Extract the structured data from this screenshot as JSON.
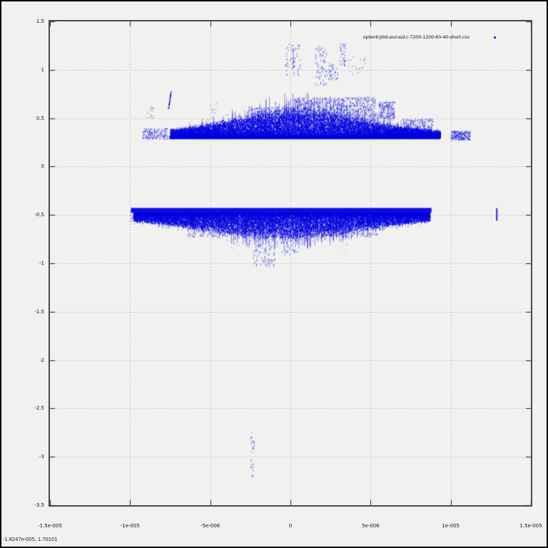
{
  "window": {
    "type": "gnuplot-plot-window",
    "background": "#f1f1ef"
  },
  "legend": {
    "label": "optentrylist-eurusd.c-7200-1200-60-40-short.csv"
  },
  "status": {
    "coordinate_readout": "-1.8247e-005, 1.70101"
  },
  "colors": {
    "point": "#0000e0",
    "point_rgb": "0,0,224",
    "grid": "#9e9e9e",
    "axis_border": "#4a4a4a",
    "tick": "#1a1a1a",
    "background": "#f1f1ef",
    "text": "#111111"
  },
  "axes": {
    "x": {
      "min": -1.5e-05,
      "max": 1.5e-05,
      "ticks": [
        {
          "v": -1.5e-05,
          "label": "-1.5e-005"
        },
        {
          "v": -1e-05,
          "label": "-1e-005"
        },
        {
          "v": -5e-06,
          "label": "-5e-006"
        },
        {
          "v": 0,
          "label": "0"
        },
        {
          "v": 5e-06,
          "label": "5e-006"
        },
        {
          "v": 1e-05,
          "label": "1e-005"
        },
        {
          "v": 1.5e-05,
          "label": "1.5e-005"
        }
      ]
    },
    "y": {
      "min": -3.5,
      "max": 1.5,
      "ticks": [
        {
          "v": 1.5,
          "label": "1.5"
        },
        {
          "v": 1,
          "label": "1"
        },
        {
          "v": 0.5,
          "label": "0.5"
        },
        {
          "v": 0,
          "label": "0"
        },
        {
          "v": -0.5,
          "label": "-0.5"
        },
        {
          "v": -1,
          "label": "-1"
        },
        {
          "v": -1.5,
          "label": "-1.5"
        },
        {
          "v": -2,
          "label": "-2"
        },
        {
          "v": -2.5,
          "label": "-2.5"
        },
        {
          "v": -3,
          "label": "-3"
        },
        {
          "v": -3.5,
          "label": "-3.5"
        }
      ]
    }
  },
  "chart_data": {
    "type": "scatter",
    "marker": "dot",
    "title": "",
    "xlabel": "",
    "ylabel": "",
    "xlim": [
      -1.5e-05,
      1.5e-05
    ],
    "ylim": [
      -3.5,
      1.5
    ],
    "grid": "dotted",
    "legend_position": "top-right-inside",
    "series": [
      {
        "name": "optentrylist-eurusd.c-7200-1200-60-40-short.csv",
        "color": "#0000e0"
      }
    ],
    "summary": "Dense blue dot scatter forming two horizontal bands: an upper band with a sharp baseline near y=0.3 and fuzzy mass rising to ~0.7 near x=0 with sparse outliers up to y~1.3 between x=0 and x=4e-6; a lower band with a sharp dense line near y=-0.45 and ragged spikes hanging to ~-1.0 near x=-2e-6; isolated clumps at x~1.05e-5 (y~0.3), a short dash at x~1.28e-5 (y~-0.5), and sparse outliers near x=-2.4e-6 from y=-2.7 down to y=-3.2.",
    "clusters": [
      {
        "name": "upper-baseline",
        "kind": "hline",
        "x0": -7.55e-06,
        "x1": 9.35e-06,
        "y0": 0.282,
        "y1": 0.316,
        "alpha": 0.95,
        "seed": 11
      },
      {
        "name": "upper-mass",
        "kind": "envelope",
        "x0": -7.5e-06,
        "x1": 9.35e-06,
        "base": 0.31,
        "dir": 1,
        "edge_h": 0.04,
        "peak_h": 0.26,
        "peak_x": 4e-07,
        "sigma": 4e-06,
        "n": 16000,
        "alpha": 0.8,
        "ph": 2,
        "seed": 12
      },
      {
        "name": "upper-halo",
        "kind": "envelope",
        "x0": -7.5e-06,
        "x1": 9.35e-06,
        "base": 0.31,
        "dir": 1,
        "edge_h": 0.05,
        "peak_h": 0.34,
        "peak_x": 4e-07,
        "sigma": 4e-06,
        "n": 2500,
        "alpha": 0.3,
        "ph": 2,
        "seed": 13
      },
      {
        "name": "upper-spikes",
        "kind": "spikes",
        "x0": -6.3e-06,
        "x1": 8.8e-06,
        "base": 0.31,
        "dir": 1,
        "edge_h": 0.05,
        "peak_h": 0.3,
        "peak_x": 5e-07,
        "sigma": 3.8e-06,
        "n": 160,
        "fmin": 0.7,
        "fmax": 1.55,
        "alpha": 0.45,
        "seed": 14
      },
      {
        "name": "upper-mid-clumps-right",
        "kind": "scatter",
        "x0": 3e-07,
        "x1": 5.3e-06,
        "y0": 0.48,
        "y1": 0.72,
        "n": 900,
        "alpha": 0.5,
        "ph": 2,
        "seed": 15
      },
      {
        "name": "upper-mid-clumps-left",
        "kind": "scatter",
        "x0": -2.5e-06,
        "x1": 3e-07,
        "y0": 0.45,
        "y1": 0.62,
        "n": 350,
        "alpha": 0.45,
        "ph": 2,
        "seed": 16
      },
      {
        "name": "upper-right-clump",
        "kind": "scatter",
        "x0": 5.5e-06,
        "x1": 6.5e-06,
        "y0": 0.5,
        "y1": 0.68,
        "n": 200,
        "alpha": 0.5,
        "ph": 2,
        "seed": 17
      },
      {
        "name": "upper-right-clump-2",
        "kind": "scatter",
        "x0": 7e-06,
        "x1": 8.9e-06,
        "y0": 0.33,
        "y1": 0.5,
        "n": 260,
        "alpha": 0.5,
        "ph": 2,
        "seed": 18
      },
      {
        "name": "upper-center-outliers",
        "kind": "scatter",
        "x0": -3.5e-07,
        "x1": 6e-07,
        "y0": 0.95,
        "y1": 1.28,
        "n": 60,
        "alpha": 0.5,
        "ph": 2,
        "seed": 19
      },
      {
        "name": "upper-center-streak",
        "kind": "vdash",
        "x": 1.5e-07,
        "y0": 1.02,
        "y1": 1.22,
        "pw": 1,
        "alpha": 0.5,
        "seed": 20
      },
      {
        "name": "upper-tall-streaks",
        "kind": "scatter",
        "x0": 1.5e-06,
        "x1": 2.3e-06,
        "y0": 0.85,
        "y1": 1.26,
        "n": 60,
        "alpha": 0.45,
        "ph": 3,
        "seed": 21
      },
      {
        "name": "upper-outlier-blob-a",
        "kind": "scatter",
        "x0": 2.35e-06,
        "x1": 3e-06,
        "y0": 0.9,
        "y1": 1.08,
        "n": 45,
        "alpha": 0.5,
        "ph": 2,
        "seed": 22
      },
      {
        "name": "upper-outlier-blob-b",
        "kind": "scatter",
        "x0": 3.05e-06,
        "x1": 3.45e-06,
        "y0": 1.05,
        "y1": 1.28,
        "n": 40,
        "alpha": 0.5,
        "ph": 2,
        "seed": 23
      },
      {
        "name": "upper-outlier-blob-c",
        "kind": "scatter",
        "x0": 3.5e-06,
        "x1": 4.7e-06,
        "y0": 0.95,
        "y1": 1.15,
        "n": 22,
        "alpha": 0.4,
        "ph": 2,
        "seed": 24
      },
      {
        "name": "upper-left-streak",
        "kind": "streak",
        "x0": -7.62e-06,
        "y0": 0.6,
        "x1": -7.45e-06,
        "y1": 0.79,
        "n": 40,
        "jx": 4e-08,
        "jy": 0.01,
        "alpha": 0.75,
        "ph": 2,
        "seed": 25
      },
      {
        "name": "upper-left-small-cluster",
        "kind": "scatter",
        "x0": -9e-06,
        "x1": -8.5e-06,
        "y0": 0.5,
        "y1": 0.63,
        "n": 25,
        "alpha": 0.5,
        "seed": 26
      },
      {
        "name": "upper-left-band-bits",
        "kind": "scatter",
        "x0": -9.25e-06,
        "x1": -7.65e-06,
        "y0": 0.285,
        "y1": 0.4,
        "n": 260,
        "alpha": 0.7,
        "seed": 27
      },
      {
        "name": "upper-right-isolated-blob",
        "kind": "scatter",
        "x0": 1e-05,
        "x1": 1.12e-05,
        "y0": 0.275,
        "y1": 0.37,
        "n": 300,
        "alpha": 0.8,
        "seed": 28
      },
      {
        "name": "upper-mid-left-sparse",
        "kind": "scatter",
        "x0": -5e-06,
        "x1": -4.6e-06,
        "y0": 0.55,
        "y1": 0.68,
        "n": 18,
        "alpha": 0.4,
        "seed": 29
      },
      {
        "name": "lower-baseline",
        "kind": "hline",
        "x0": -9.95e-06,
        "x1": 8.8e-06,
        "y0": -0.478,
        "y1": -0.428,
        "alpha": 0.95,
        "seed": 30
      },
      {
        "name": "lower-mass",
        "kind": "envelope",
        "x0": -9.8e-06,
        "x1": 8.7e-06,
        "base": -0.475,
        "dir": -1,
        "edge_h": 0.05,
        "peak_h": 0.24,
        "peak_x": -5e-07,
        "sigma": 4.8e-06,
        "n": 16000,
        "alpha": 0.8,
        "ph": 2,
        "seed": 31
      },
      {
        "name": "lower-halo",
        "kind": "envelope",
        "x0": -9.8e-06,
        "x1": 8.7e-06,
        "base": -0.475,
        "dir": -1,
        "edge_h": 0.06,
        "peak_h": 0.32,
        "peak_x": -5e-07,
        "sigma": 4.8e-06,
        "n": 2500,
        "alpha": 0.3,
        "ph": 2,
        "seed": 32
      },
      {
        "name": "lower-spikes",
        "kind": "spikes",
        "x0": -8.5e-06,
        "x1": 7.5e-06,
        "base": -0.47,
        "dir": -1,
        "edge_h": 0.06,
        "peak_h": 0.27,
        "peak_x": -5e-07,
        "sigma": 4.5e-06,
        "n": 200,
        "fmin": 0.7,
        "fmax": 1.5,
        "alpha": 0.45,
        "seed": 33
      },
      {
        "name": "lower-mid-clumps",
        "kind": "scatter",
        "x0": -6.5e-06,
        "x1": 5.5e-06,
        "y0": -0.72,
        "y1": -0.55,
        "n": 800,
        "alpha": 0.45,
        "ph": 2,
        "seed": 34
      },
      {
        "name": "lower-deep-streaks",
        "kind": "scatter",
        "x0": -2.35e-06,
        "x1": -1e-06,
        "y0": -1.02,
        "y1": -0.72,
        "n": 80,
        "alpha": 0.45,
        "ph": 3,
        "seed": 35
      },
      {
        "name": "lower-deep-streaks-2",
        "kind": "scatter",
        "x0": -6e-07,
        "x1": 4e-07,
        "y0": -0.9,
        "y1": -0.7,
        "n": 50,
        "alpha": 0.45,
        "ph": 3,
        "seed": 36
      },
      {
        "name": "lower-left-sparse",
        "kind": "scatter",
        "x0": -1e-05,
        "x1": -8.8e-06,
        "y0": -0.57,
        "y1": -0.44,
        "n": 90,
        "alpha": 0.6,
        "seed": 37
      },
      {
        "name": "lower-deep-bits",
        "kind": "scatter",
        "x0": -4.1e-06,
        "x1": -3.2e-06,
        "y0": -0.86,
        "y1": -0.72,
        "n": 16,
        "alpha": 0.4,
        "seed": 38
      },
      {
        "name": "lower-deep-dot",
        "kind": "scatter",
        "x0": 3.3e-06,
        "x1": 3.55e-06,
        "y0": -0.87,
        "y1": -0.78,
        "n": 6,
        "alpha": 0.4,
        "seed": 39
      },
      {
        "name": "lower-right-isolated-dash",
        "kind": "vdash",
        "x": 1.283e-05,
        "y0": -0.56,
        "y1": -0.43,
        "pw": 2,
        "alpha": 0.85,
        "seed": 40
      },
      {
        "name": "bottom-outliers-upper-clump",
        "kind": "scatter",
        "x0": -2.5e-06,
        "x1": -2.25e-06,
        "y0": -2.95,
        "y1": -2.73,
        "n": 22,
        "alpha": 0.4,
        "ph": 2,
        "seed": 41
      },
      {
        "name": "bottom-outliers-lower-clump",
        "kind": "scatter",
        "x0": -2.5e-06,
        "x1": -2.3e-06,
        "y0": -3.2,
        "y1": -3.0,
        "n": 16,
        "alpha": 0.4,
        "ph": 2,
        "seed": 42
      }
    ]
  }
}
